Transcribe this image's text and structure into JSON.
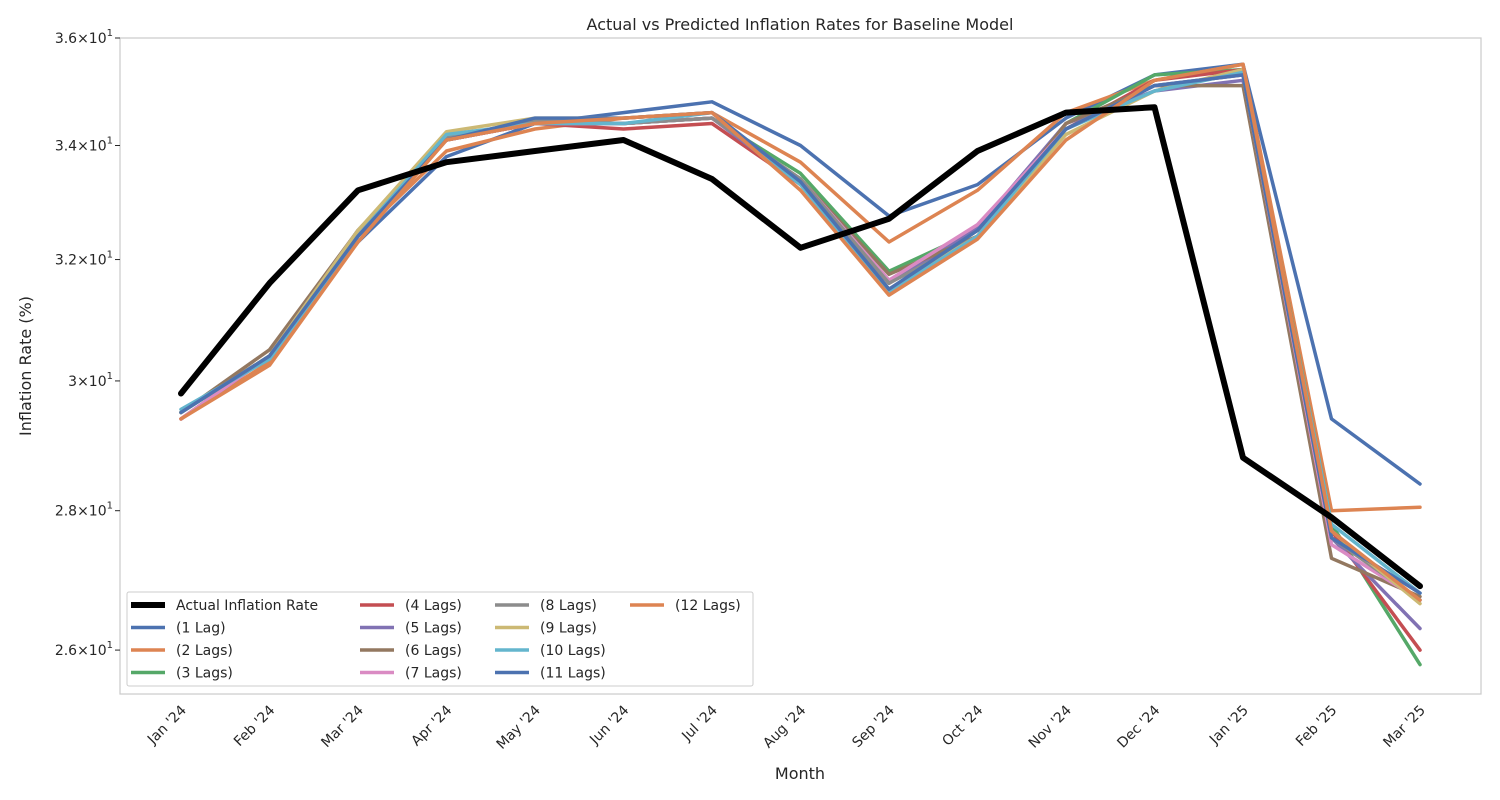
{
  "chart_data": {
    "type": "line",
    "title": "Actual vs Predicted Inflation Rates for Baseline Model",
    "xlabel": "Month",
    "ylabel": "Inflation Rate (%)",
    "yscale": "log",
    "ylim": [
      25.4,
      36.0
    ],
    "yticks": [
      {
        "value": 26,
        "base": "2.6",
        "exp": "1"
      },
      {
        "value": 28,
        "base": "2.8",
        "exp": "1"
      },
      {
        "value": 30,
        "base": "3",
        "exp": "1"
      },
      {
        "value": 32,
        "base": "3.2",
        "exp": "1"
      },
      {
        "value": 34,
        "base": "3.4",
        "exp": "1"
      },
      {
        "value": 36,
        "base": "3.6",
        "exp": "1"
      }
    ],
    "grid": false,
    "legend_placement": "lower-left",
    "categories": [
      "Jan '24",
      "Feb '24",
      "Mar '24",
      "Apr '24",
      "May '24",
      "Jun '24",
      "Jul '24",
      "Aug '24",
      "Sep '24",
      "Oct '24",
      "Nov '24",
      "Dec '24",
      "Jan '25",
      "Feb '25",
      "Mar '25"
    ],
    "series": [
      {
        "name": "Actual Inflation Rate",
        "color": "#000000",
        "width": 6,
        "values": [
          29.8,
          31.6,
          33.2,
          33.7,
          33.9,
          34.1,
          33.4,
          32.2,
          32.7,
          33.9,
          34.6,
          34.7,
          28.8,
          27.9,
          26.9
        ]
      },
      {
        "name": "(1 Lag)",
        "color": "#4c72b0",
        "width": 3.5,
        "values": [
          29.5,
          30.4,
          32.3,
          33.8,
          34.4,
          34.6,
          34.8,
          34.0,
          32.75,
          33.3,
          34.5,
          35.3,
          35.5,
          29.4,
          28.4
        ]
      },
      {
        "name": "(2 Lags)",
        "color": "#dd8452",
        "width": 3.5,
        "values": [
          29.4,
          30.3,
          32.4,
          33.9,
          34.3,
          34.5,
          34.6,
          33.7,
          32.3,
          33.2,
          34.6,
          35.2,
          35.5,
          28.0,
          28.05
        ]
      },
      {
        "name": "(3 Lags)",
        "color": "#55a868",
        "width": 3.5,
        "values": [
          29.5,
          30.4,
          32.5,
          34.1,
          34.4,
          34.4,
          34.5,
          33.5,
          31.8,
          32.5,
          34.4,
          35.3,
          35.4,
          27.8,
          25.8
        ]
      },
      {
        "name": "(4 Lags)",
        "color": "#c44e52",
        "width": 3.5,
        "values": [
          29.4,
          30.4,
          32.4,
          34.1,
          34.4,
          34.3,
          34.4,
          33.3,
          31.6,
          32.5,
          34.3,
          35.2,
          35.4,
          27.7,
          26.0
        ]
      },
      {
        "name": "(5 Lags)",
        "color": "#8172b3",
        "width": 3.5,
        "values": [
          29.4,
          30.4,
          32.5,
          34.1,
          34.4,
          34.4,
          34.5,
          33.3,
          31.6,
          32.55,
          34.4,
          35.0,
          35.2,
          27.6,
          26.3
        ]
      },
      {
        "name": "(6 Lags)",
        "color": "#937860",
        "width": 3.5,
        "values": [
          29.5,
          30.5,
          32.5,
          34.1,
          34.4,
          34.4,
          34.5,
          33.4,
          31.75,
          32.4,
          34.4,
          35.1,
          35.1,
          27.3,
          26.75
        ]
      },
      {
        "name": "(7 Lags)",
        "color": "#da8bc3",
        "width": 3.5,
        "values": [
          29.4,
          30.4,
          32.5,
          34.1,
          34.4,
          34.4,
          34.5,
          33.4,
          31.65,
          32.6,
          34.3,
          35.1,
          35.3,
          27.5,
          26.7
        ]
      },
      {
        "name": "(8 Lags)",
        "color": "#8c8c8c",
        "width": 3.5,
        "values": [
          29.5,
          30.4,
          32.5,
          34.15,
          34.45,
          34.4,
          34.5,
          33.4,
          31.6,
          32.4,
          34.3,
          35.1,
          35.3,
          27.6,
          26.7
        ]
      },
      {
        "name": "(9 Lags)",
        "color": "#ccb974",
        "width": 3.5,
        "values": [
          29.5,
          30.4,
          32.5,
          34.25,
          34.5,
          34.5,
          34.6,
          33.3,
          31.5,
          32.4,
          34.2,
          35.0,
          35.4,
          27.7,
          26.65
        ]
      },
      {
        "name": "(10 Lags)",
        "color": "#64b5cd",
        "width": 3.5,
        "values": [
          29.55,
          30.35,
          32.4,
          34.2,
          34.4,
          34.4,
          34.6,
          33.3,
          31.45,
          32.4,
          34.3,
          35.0,
          35.35,
          27.8,
          26.8
        ]
      },
      {
        "name": "(11 Lags)",
        "color": "#4c72b0",
        "width": 3.5,
        "values": [
          29.5,
          30.4,
          32.4,
          34.1,
          34.5,
          34.5,
          34.6,
          33.35,
          31.5,
          32.5,
          34.3,
          35.1,
          35.3,
          27.6,
          26.8
        ]
      },
      {
        "name": "(12 Lags)",
        "color": "#dd8452",
        "width": 3.5,
        "values": [
          29.4,
          30.25,
          32.3,
          34.1,
          34.4,
          34.5,
          34.6,
          33.2,
          31.4,
          32.35,
          34.1,
          35.2,
          35.5,
          27.7,
          26.7
        ]
      }
    ]
  }
}
